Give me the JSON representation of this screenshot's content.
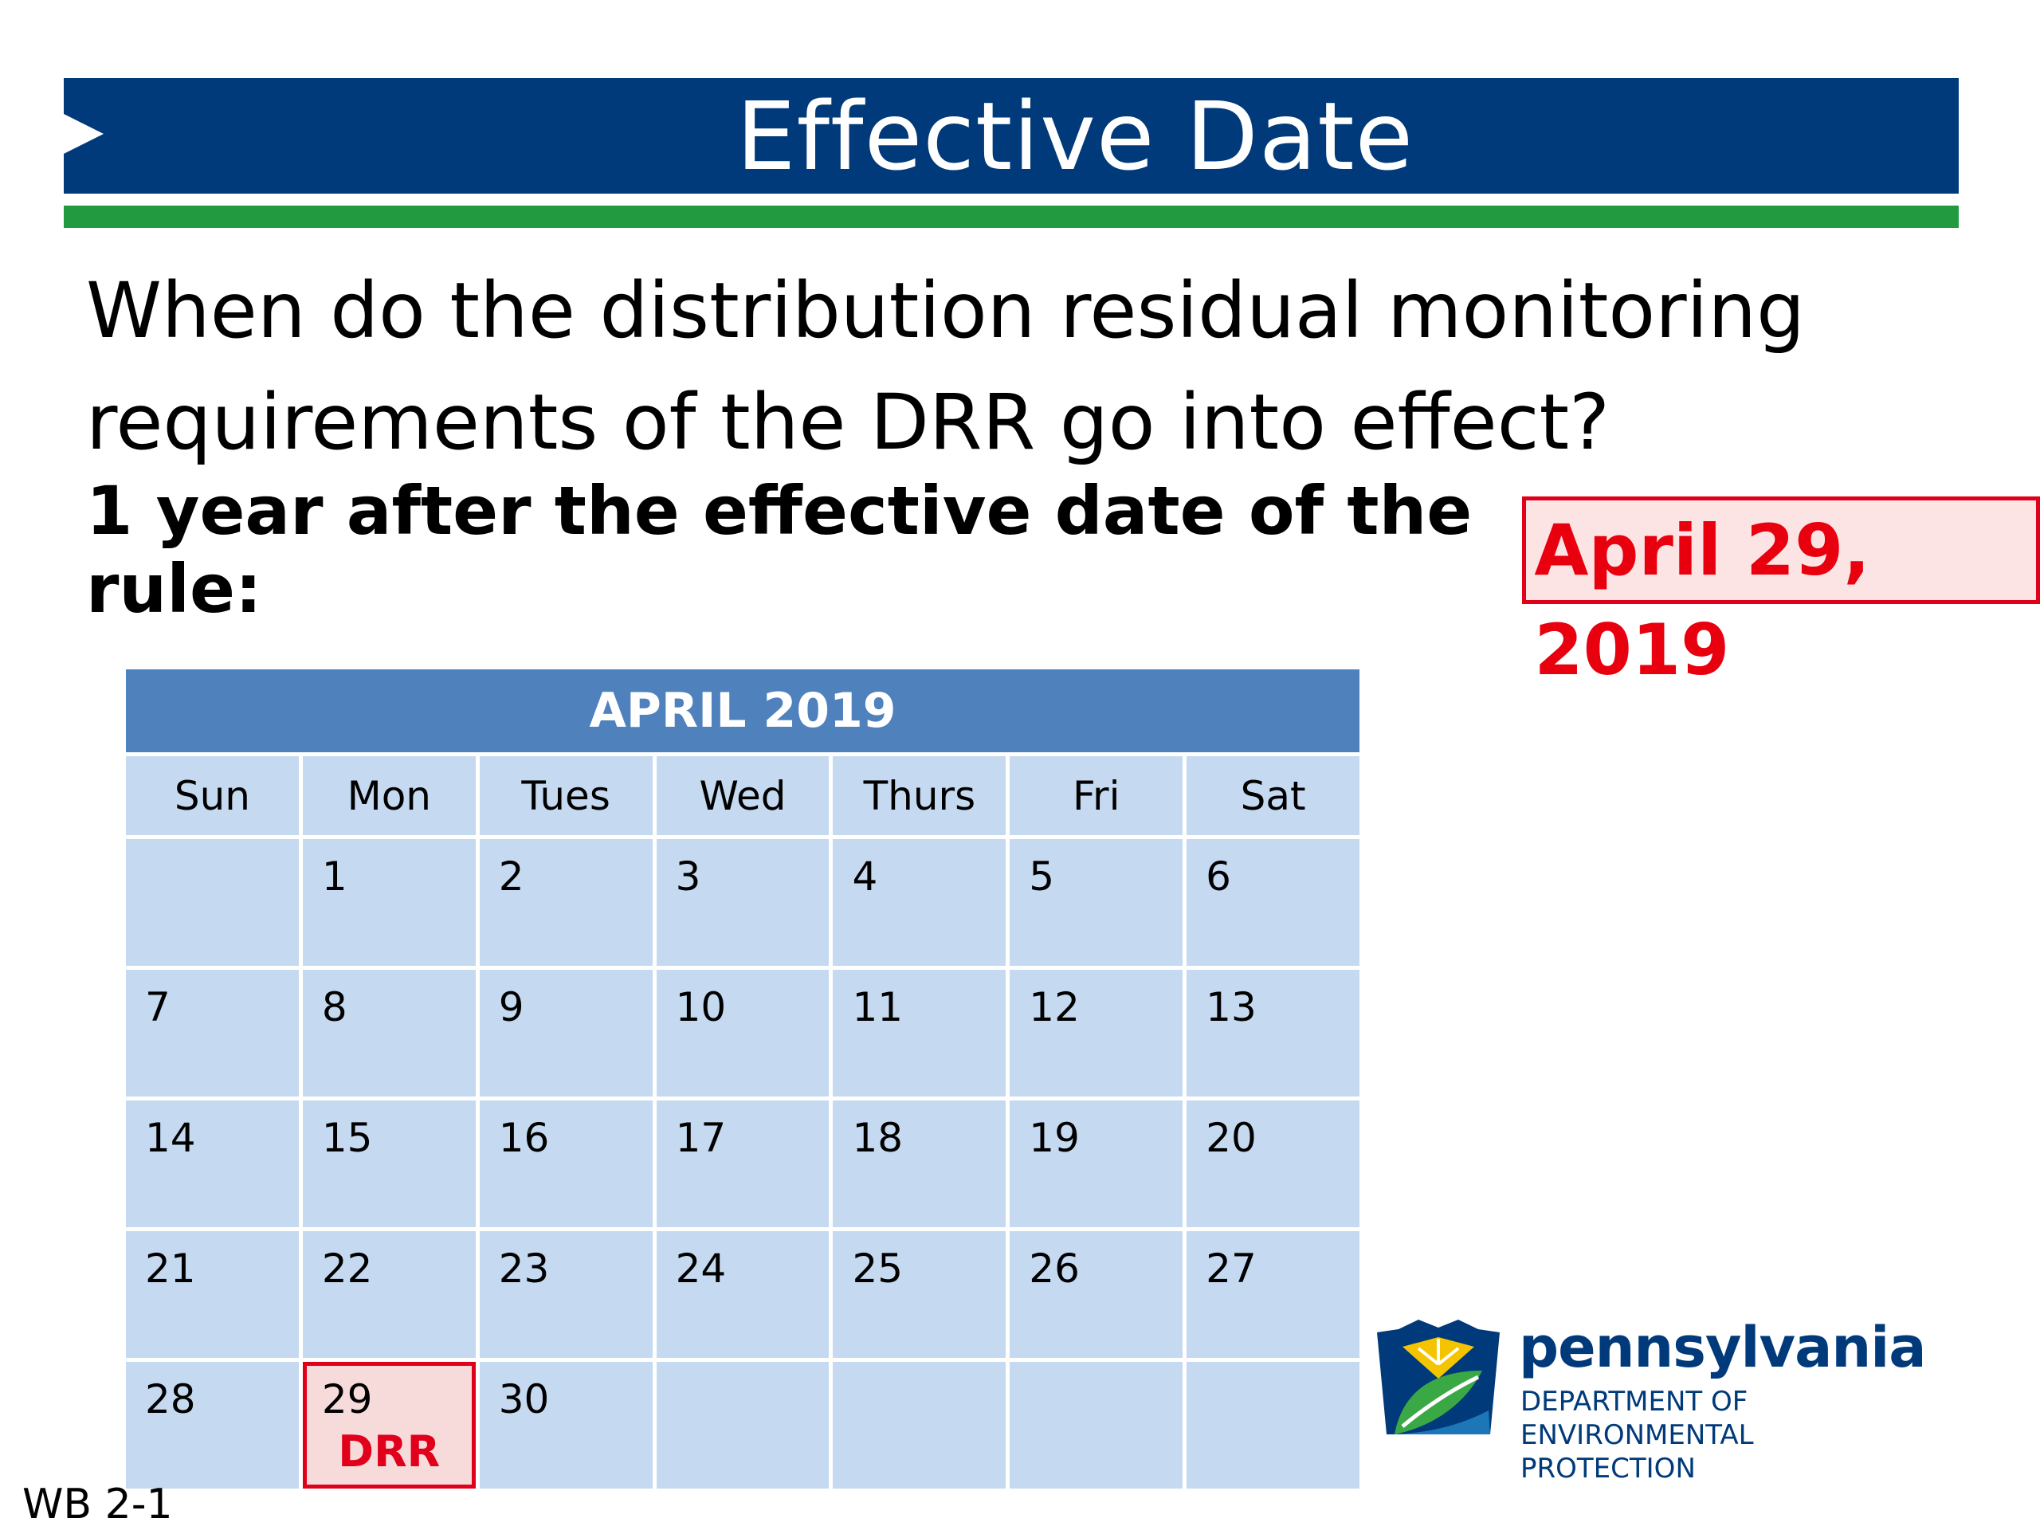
{
  "slide": {
    "title": "Effective Date",
    "question_line1": "When do the distribution residual monitoring",
    "question_line2": "requirements of the DRR go into effect?",
    "answer_label": "1 year after the effective date of the rule:",
    "answer_date": "April 29, 2019",
    "footer_id": "WB 2-1"
  },
  "calendar": {
    "title": "APRIL 2019",
    "weekdays": [
      "Sun",
      "Mon",
      "Tues",
      "Wed",
      "Thurs",
      "Fri",
      "Sat"
    ],
    "weeks": [
      [
        "",
        "1",
        "2",
        "3",
        "4",
        "5",
        "6"
      ],
      [
        "7",
        "8",
        "9",
        "10",
        "11",
        "12",
        "13"
      ],
      [
        "14",
        "15",
        "16",
        "17",
        "18",
        "19",
        "20"
      ],
      [
        "21",
        "22",
        "23",
        "24",
        "25",
        "26",
        "27"
      ],
      [
        "28",
        "29",
        "30",
        "",
        "",
        "",
        ""
      ]
    ],
    "highlight_day": "29",
    "highlight_note": "DRR"
  },
  "logo": {
    "name": "pennsylvania",
    "dept_line1": "DEPARTMENT OF ENVIRONMENTAL",
    "dept_line2": "PROTECTION"
  },
  "colors": {
    "title_bar": "#003a7a",
    "green_rule": "#229a3f",
    "calendar_header": "#4f81bd",
    "calendar_cell": "#c5d9f0",
    "highlight": "#e0001b"
  }
}
